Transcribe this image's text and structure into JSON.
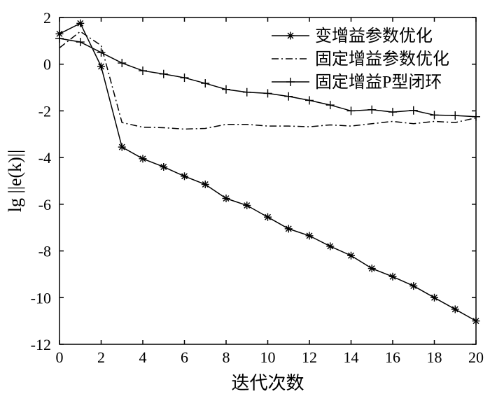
{
  "chart_data": {
    "type": "line",
    "xlabel": "迭代次数",
    "ylabel": "lg ||e(k)||",
    "xlim": [
      0,
      20
    ],
    "ylim": [
      -12,
      2
    ],
    "xticks": [
      0,
      2,
      4,
      6,
      8,
      10,
      12,
      14,
      16,
      18,
      20
    ],
    "yticks": [
      2,
      0,
      -2,
      -4,
      -6,
      -8,
      -10,
      -12
    ],
    "grid": false,
    "legend_position": "top-right",
    "x": [
      0,
      1,
      2,
      3,
      4,
      5,
      6,
      7,
      8,
      9,
      10,
      11,
      12,
      13,
      14,
      15,
      16,
      17,
      18,
      19,
      20
    ],
    "series": [
      {
        "name": "变增益参数优化",
        "style": "solid-star",
        "values": [
          1.3,
          1.75,
          -0.1,
          -3.55,
          -4.05,
          -4.4,
          -4.8,
          -5.15,
          -5.75,
          -6.05,
          -6.55,
          -7.05,
          -7.35,
          -7.8,
          -8.2,
          -8.75,
          -9.1,
          -9.5,
          -10.0,
          -10.5,
          -11.0
        ]
      },
      {
        "name": "固定增益参数优化",
        "style": "dash-dot",
        "values": [
          0.7,
          1.4,
          0.8,
          -2.5,
          -2.7,
          -2.72,
          -2.78,
          -2.75,
          -2.58,
          -2.58,
          -2.65,
          -2.65,
          -2.68,
          -2.6,
          -2.65,
          -2.55,
          -2.45,
          -2.55,
          -2.45,
          -2.5,
          -2.3
        ]
      },
      {
        "name": "固定增益P型闭环",
        "style": "solid-plus",
        "values": [
          1.1,
          0.95,
          0.5,
          0.05,
          -0.28,
          -0.42,
          -0.58,
          -0.82,
          -1.08,
          -1.2,
          -1.25,
          -1.38,
          -1.55,
          -1.75,
          -2.0,
          -1.95,
          -2.05,
          -1.98,
          -2.18,
          -2.2,
          -2.25
        ]
      }
    ]
  }
}
